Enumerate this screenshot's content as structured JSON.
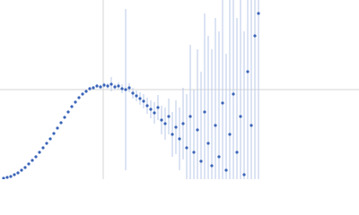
{
  "chart_data": {
    "type": "scatter",
    "x": [
      4,
      8,
      12,
      16,
      20,
      24,
      28,
      32,
      36,
      40,
      44,
      48,
      52,
      56,
      60,
      64,
      68,
      72,
      76,
      80,
      84,
      88,
      92,
      96,
      100,
      104,
      108,
      112,
      116,
      120,
      124,
      128,
      132,
      136,
      140,
      144,
      148,
      152,
      156,
      160,
      164,
      168,
      172,
      176,
      180,
      184,
      188,
      192,
      196,
      200,
      204,
      208,
      212,
      216,
      220,
      224,
      228,
      232,
      236,
      240,
      244,
      248,
      252,
      256,
      260,
      264,
      268,
      272,
      276,
      280,
      284,
      288
    ],
    "series": [
      {
        "color": "#3a64b8",
        "values": [
          1,
          2,
          3,
          5,
          7,
          10,
          13,
          17,
          21,
          25,
          30,
          35,
          40,
          45,
          51,
          57,
          63,
          69,
          75,
          81,
          86,
          91,
          95,
          98,
          101,
          102,
          104,
          103,
          105,
          104,
          106,
          103,
          104,
          101,
          100,
          102,
          96,
          93,
          90,
          87,
          82,
          78,
          74,
          80,
          66,
          62,
          70,
          50,
          58,
          45,
          62,
          35,
          70,
          30,
          55,
          20,
          75,
          40,
          15,
          60,
          25,
          85,
          10,
          50,
          95,
          30,
          70,
          5,
          120,
          60,
          160,
          185
        ],
        "errors": [
          0.3,
          0.3,
          0.3,
          0.4,
          0.4,
          0.5,
          0.5,
          0.5,
          0.6,
          0.6,
          0.7,
          0.7,
          0.8,
          0.8,
          0.9,
          1,
          1,
          1,
          1.2,
          1.3,
          1.4,
          1.5,
          1.6,
          1.8,
          2,
          2,
          2.2,
          2.4,
          2.6,
          3,
          8,
          3,
          4,
          5,
          90,
          5,
          6,
          6,
          7,
          8,
          9,
          10,
          12,
          14,
          16,
          18,
          20,
          25,
          30,
          35,
          40,
          60,
          80,
          70,
          90,
          100,
          110,
          120,
          130,
          120,
          140,
          150,
          130,
          160,
          170,
          150,
          180,
          160,
          190,
          200,
          200,
          210
        ],
        "error_color": "#b9c9e9"
      }
    ],
    "xlim": [
      0,
      400
    ],
    "ylim": [
      0,
      200
    ],
    "xticks": [
      115
    ],
    "yticks": [
      100
    ],
    "grid": true
  }
}
